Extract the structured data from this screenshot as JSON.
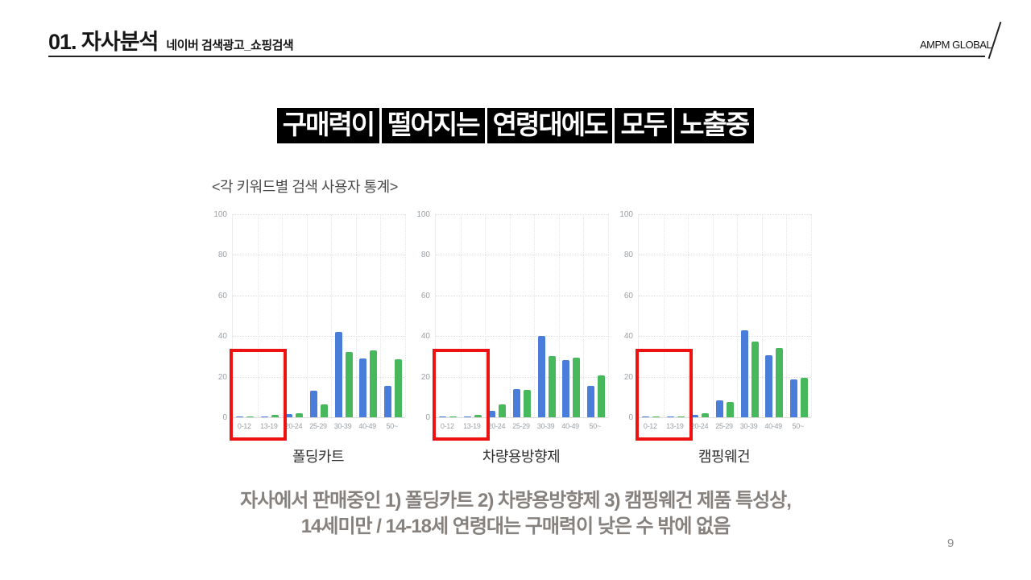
{
  "header": {
    "section_title": "01. 자사분석",
    "section_subtitle": "네이버 검색광고_쇼핑검색",
    "logo": "AMPM GLOBAL"
  },
  "title": {
    "text": "구매력이 떨어지는 연령대에도 모두 노출중",
    "background": "#000000",
    "color": "#ffffff"
  },
  "charts_heading": "<각 키워드별 검색 사용자 통계>",
  "chart_data": [
    {
      "type": "bar",
      "title": "폴딩카트",
      "categories": [
        "0-12",
        "13-19",
        "20-24",
        "25-29",
        "30-39",
        "40-49",
        "50~"
      ],
      "series": [
        {
          "name": "series-blue",
          "color": "#4a7cd9",
          "values": [
            0.3,
            0.4,
            1.5,
            13,
            42,
            29,
            15.5
          ]
        },
        {
          "name": "series-green",
          "color": "#48b85c",
          "values": [
            0.4,
            1,
            2,
            6.5,
            32,
            33,
            28.5
          ]
        }
      ],
      "ylim": [
        0,
        100
      ],
      "yticks": [
        0,
        20,
        40,
        60,
        80,
        100
      ],
      "grid": true,
      "legend": "none",
      "highlight_box": {
        "categories": [
          "0-12",
          "13-19"
        ],
        "color": "#ee1111"
      }
    },
    {
      "type": "bar",
      "title": "차량용방향제",
      "categories": [
        "0-12",
        "13-19",
        "20-24",
        "25-29",
        "30-39",
        "40-49",
        "50~"
      ],
      "series": [
        {
          "name": "series-blue",
          "color": "#4a7cd9",
          "values": [
            0.2,
            0.3,
            3,
            14,
            40,
            28,
            15.5
          ]
        },
        {
          "name": "series-green",
          "color": "#48b85c",
          "values": [
            0.3,
            1.2,
            6.5,
            13.5,
            30,
            29.5,
            20.5
          ]
        }
      ],
      "ylim": [
        0,
        100
      ],
      "yticks": [
        0,
        20,
        40,
        60,
        80,
        100
      ],
      "grid": true,
      "legend": "none",
      "highlight_box": {
        "categories": [
          "0-12",
          "13-19"
        ],
        "color": "#ee1111"
      }
    },
    {
      "type": "bar",
      "title": "캠핑웨건",
      "categories": [
        "0-12",
        "13-19",
        "20-24",
        "25-29",
        "30-39",
        "40-49",
        "50~"
      ],
      "series": [
        {
          "name": "series-blue",
          "color": "#4a7cd9",
          "values": [
            0.2,
            0.3,
            1,
            8.5,
            43,
            30.5,
            18.5
          ]
        },
        {
          "name": "series-green",
          "color": "#48b85c",
          "values": [
            0.2,
            0.4,
            1.8,
            7.5,
            37.5,
            34,
            19.5
          ]
        }
      ],
      "ylim": [
        0,
        100
      ],
      "yticks": [
        0,
        20,
        40,
        60,
        80,
        100
      ],
      "grid": true,
      "legend": "none",
      "highlight_box": {
        "categories": [
          "0-12",
          "13-19"
        ],
        "color": "#ee1111"
      }
    }
  ],
  "note": {
    "line1": "자사에서 판매중인 1) 폴딩카트 2) 차량용방향제 3) 캠핑웨건 제품 특성상,",
    "line2": "14세미만 / 14-18세 연령대는 구매력이 낮은 수 밖에 없음"
  },
  "page_number": "9"
}
